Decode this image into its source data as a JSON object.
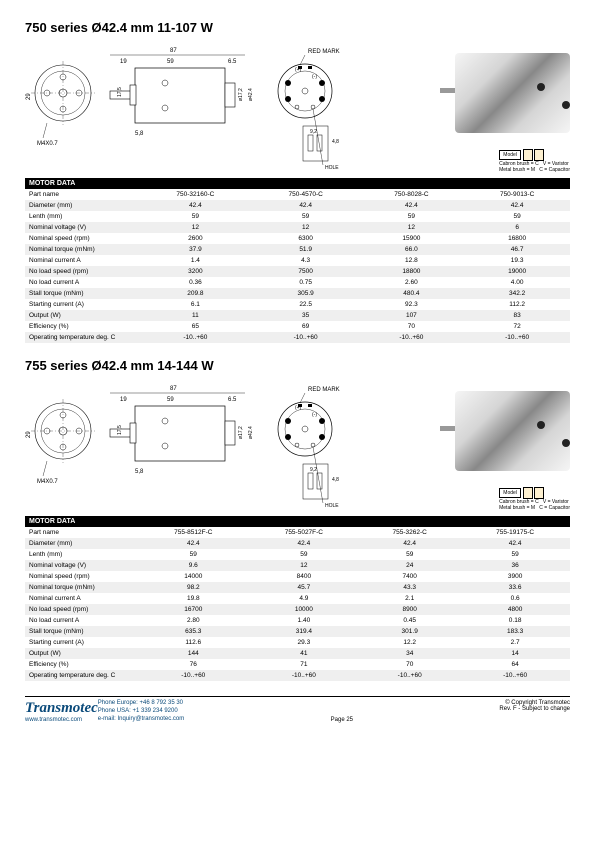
{
  "series750": {
    "title": "750 series Ø42.4 mm 11-107 W",
    "table_header": "MOTOR DATA",
    "rows": [
      {
        "label": "Part name",
        "cells": [
          "750-32160-C",
          "750-4570-C",
          "750-8028-C",
          "750-9013-C"
        ]
      },
      {
        "label": "Diameter (mm)",
        "cells": [
          "42.4",
          "42.4",
          "42.4",
          "42.4"
        ]
      },
      {
        "label": "Lenth (mm)",
        "cells": [
          "59",
          "59",
          "59",
          "59"
        ]
      },
      {
        "label": "Nominal voltage (V)",
        "cells": [
          "12",
          "12",
          "12",
          "6"
        ]
      },
      {
        "label": "Nominal speed (rpm)",
        "cells": [
          "2600",
          "6300",
          "15900",
          "16800"
        ]
      },
      {
        "label": "Nominal torque (mNm)",
        "cells": [
          "37.9",
          "51.9",
          "66.0",
          "46.7"
        ]
      },
      {
        "label": "Nominal current A",
        "cells": [
          "1.4",
          "4.3",
          "12.8",
          "19.3"
        ]
      },
      {
        "label": "No load speed (rpm)",
        "cells": [
          "3200",
          "7500",
          "18800",
          "19000"
        ]
      },
      {
        "label": "No load current A",
        "cells": [
          "0.36",
          "0.75",
          "2.60",
          "4.00"
        ]
      },
      {
        "label": "Stall torque (mNm)",
        "cells": [
          "209.8",
          "305.9",
          "480.4",
          "342.2"
        ]
      },
      {
        "label": "Starting current (A)",
        "cells": [
          "6.1",
          "22.5",
          "92.3",
          "112.2"
        ]
      },
      {
        "label": "Output (W)",
        "cells": [
          "11",
          "35",
          "107",
          "83"
        ]
      },
      {
        "label": "Efficiency (%)",
        "cells": [
          "65",
          "69",
          "70",
          "72"
        ]
      },
      {
        "label": "Operating temperature deg. C",
        "cells": [
          "-10..+60",
          "-10..+60",
          "-10..+60",
          "-10..+60"
        ]
      }
    ]
  },
  "series755": {
    "title": "755 series Ø42.4 mm 14-144 W",
    "table_header": "MOTOR DATA",
    "rows": [
      {
        "label": "Part name",
        "cells": [
          "755-8512F-C",
          "755-5027F-C",
          "755-3262-C",
          "755-19175-C"
        ]
      },
      {
        "label": "Diameter (mm)",
        "cells": [
          "42.4",
          "42.4",
          "42.4",
          "42.4"
        ]
      },
      {
        "label": "Lenth (mm)",
        "cells": [
          "59",
          "59",
          "59",
          "59"
        ]
      },
      {
        "label": "Nominal voltage (V)",
        "cells": [
          "9.6",
          "12",
          "24",
          "36"
        ]
      },
      {
        "label": "Nominal speed (rpm)",
        "cells": [
          "14000",
          "8400",
          "7400",
          "3900"
        ]
      },
      {
        "label": "Nominal torque (mNm)",
        "cells": [
          "98.2",
          "45.7",
          "43.3",
          "33.6"
        ]
      },
      {
        "label": "Nominal current A",
        "cells": [
          "19.8",
          "4.9",
          "2.1",
          "0.6"
        ]
      },
      {
        "label": "No load speed (rpm)",
        "cells": [
          "16700",
          "10000",
          "8900",
          "4800"
        ]
      },
      {
        "label": "No load current A",
        "cells": [
          "2.80",
          "1.40",
          "0.45",
          "0.18"
        ]
      },
      {
        "label": "Stall torque (mNm)",
        "cells": [
          "635.3",
          "319.4",
          "301.9",
          "183.3"
        ]
      },
      {
        "label": "Starting current (A)",
        "cells": [
          "112.6",
          "29.3",
          "12.2",
          "2.7"
        ]
      },
      {
        "label": "Output (W)",
        "cells": [
          "144",
          "41",
          "34",
          "14"
        ]
      },
      {
        "label": "Efficiency (%)",
        "cells": [
          "76",
          "71",
          "70",
          "64"
        ]
      },
      {
        "label": "Operating temperature deg. C",
        "cells": [
          "-10..+60",
          "-10..+60",
          "-10..+60",
          "-10..+60"
        ]
      }
    ]
  },
  "legend": {
    "model": "Model",
    "carbon": "Cabron brush = C",
    "metal": "Metal brush = M",
    "varistor": "V = Varistor",
    "capacitor": "C = Capacitor"
  },
  "diagram_labels": {
    "red_mark": "RED MARK",
    "hole": "HOLE",
    "d87": "87",
    "d59": "59",
    "d19": "19",
    "d65": "6.5",
    "d58": "5,8",
    "d29": "29",
    "d175": "17,5",
    "m4": "M4X0.7",
    "d92": "9,2",
    "d48": "4,8",
    "d424": "ø42.4",
    "d304": "30%",
    "d172": "ø17,2"
  },
  "footer": {
    "brand": "Transmotec",
    "site": "www.transmotec.com",
    "phone_eu": "Phone Europe: +46 8 792 35 30",
    "phone_us": "Phone USA:    +1 339 234 9200",
    "email": "e-mail: Inquiry@transmotec.com",
    "page": "Page 25",
    "copyright": "© Copyright Transmotec",
    "rev": "Rev. F - Subject to change"
  },
  "styling": {
    "header_bg": "#000000",
    "header_fg": "#ffffff",
    "row_odd": "#efefef",
    "row_even": "#ffffff",
    "brand_color": "#0a4a7a"
  }
}
